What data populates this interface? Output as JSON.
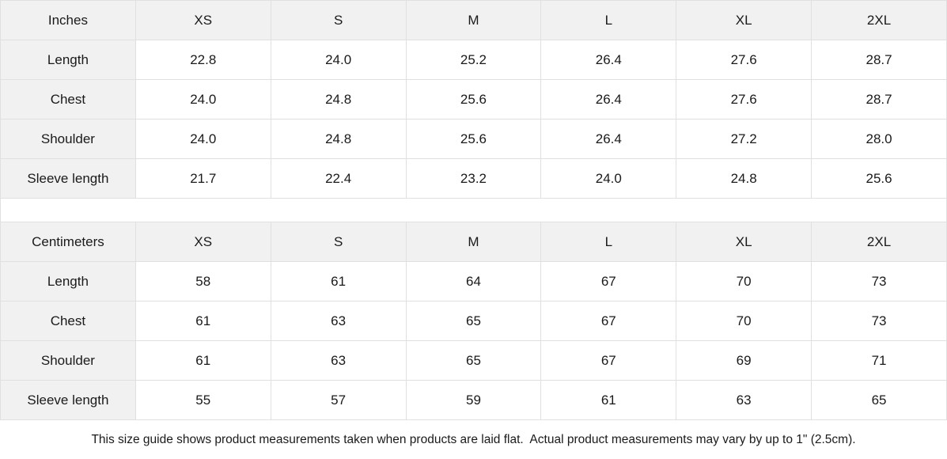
{
  "colors": {
    "header_bg": "#f1f1f2",
    "cell_bg": "#ffffff",
    "border": "#e0e0e0",
    "text": "#1a1a1a"
  },
  "sizes": [
    "XS",
    "S",
    "M",
    "L",
    "XL",
    "2XL"
  ],
  "tables": [
    {
      "unit_label": "Inches",
      "rows": [
        {
          "label": "Length",
          "values": [
            "22.8",
            "24.0",
            "25.2",
            "26.4",
            "27.6",
            "28.7"
          ]
        },
        {
          "label": "Chest",
          "values": [
            "24.0",
            "24.8",
            "25.6",
            "26.4",
            "27.6",
            "28.7"
          ]
        },
        {
          "label": "Shoulder",
          "values": [
            "24.0",
            "24.8",
            "25.6",
            "26.4",
            "27.2",
            "28.0"
          ]
        },
        {
          "label": "Sleeve length",
          "values": [
            "21.7",
            "22.4",
            "23.2",
            "24.0",
            "24.8",
            "25.6"
          ]
        }
      ]
    },
    {
      "unit_label": "Centimeters",
      "rows": [
        {
          "label": "Length",
          "values": [
            "58",
            "61",
            "64",
            "67",
            "70",
            "73"
          ]
        },
        {
          "label": "Chest",
          "values": [
            "61",
            "63",
            "65",
            "67",
            "70",
            "73"
          ]
        },
        {
          "label": "Shoulder",
          "values": [
            "61",
            "63",
            "65",
            "67",
            "69",
            "71"
          ]
        },
        {
          "label": "Sleeve length",
          "values": [
            "55",
            "57",
            "59",
            "61",
            "63",
            "65"
          ]
        }
      ]
    }
  ],
  "note": "This size guide shows product measurements taken when products are laid flat.  Actual product measurements may vary by up to 1\" (2.5cm)."
}
